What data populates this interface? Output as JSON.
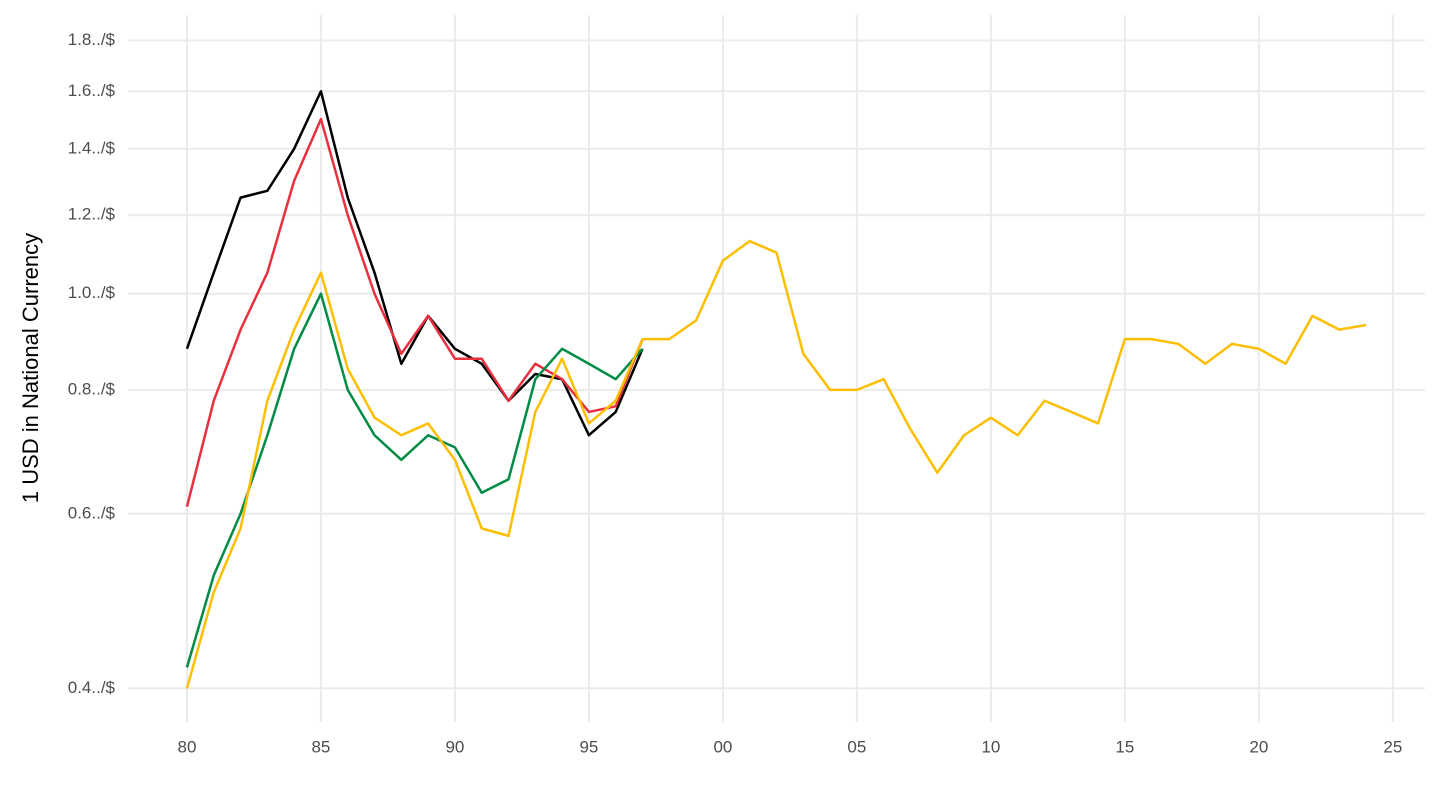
{
  "chart_data": {
    "type": "line",
    "y_label": "1 USD in National Currency",
    "log_scale": true,
    "grid": true,
    "x": [
      1980,
      1981,
      1982,
      1983,
      1984,
      1985,
      1986,
      1987,
      1988,
      1989,
      1990,
      1991,
      1992,
      1993,
      1994,
      1995,
      1996,
      1997,
      1998,
      1999,
      2000,
      2001,
      2002,
      2003,
      2004,
      2005,
      2006,
      2007,
      2008,
      2009,
      2010,
      2011,
      2012,
      2013,
      2014,
      2015,
      2016,
      2017,
      2018,
      2019,
      2020,
      2021,
      2022,
      2023,
      2024
    ],
    "xlim": [
      1977.8,
      2026.2
    ],
    "xticks": [
      {
        "value": 1980,
        "label": "80"
      },
      {
        "value": 1985,
        "label": "85"
      },
      {
        "value": 1990,
        "label": "90"
      },
      {
        "value": 1995,
        "label": "95"
      },
      {
        "value": 2000,
        "label": "00"
      },
      {
        "value": 2005,
        "label": "05"
      },
      {
        "value": 2010,
        "label": "10"
      },
      {
        "value": 2015,
        "label": "15"
      },
      {
        "value": 2020,
        "label": "20"
      },
      {
        "value": 2025,
        "label": "25"
      }
    ],
    "ylim": [
      0.37,
      1.91
    ],
    "yticks": [
      {
        "value": 0.4,
        "label": "0.4../$"
      },
      {
        "value": 0.6,
        "label": "0.6../$"
      },
      {
        "value": 0.8,
        "label": "0.8../$"
      },
      {
        "value": 1.0,
        "label": "1.0../$"
      },
      {
        "value": 1.2,
        "label": "1.2../$"
      },
      {
        "value": 1.4,
        "label": "1.4../$"
      },
      {
        "value": 1.6,
        "label": "1.6../$"
      },
      {
        "value": 1.8,
        "label": "1.8../$"
      }
    ],
    "series": [
      {
        "color": "#000000",
        "values": [
          0.88,
          1.05,
          1.25,
          1.27,
          1.4,
          1.6,
          1.25,
          1.05,
          0.85,
          0.95,
          0.88,
          0.85,
          0.78,
          0.83,
          0.82,
          0.72,
          0.76,
          0.88,
          null,
          null,
          null,
          null,
          null,
          null,
          null,
          null,
          null,
          null,
          null,
          null,
          null,
          null,
          null,
          null,
          null,
          null,
          null,
          null,
          null,
          null,
          null,
          null,
          null,
          null,
          null
        ]
      },
      {
        "color": "#e8303f",
        "values": [
          0.61,
          0.78,
          0.92,
          1.05,
          1.3,
          1.5,
          1.2,
          1.0,
          0.87,
          0.95,
          0.86,
          0.86,
          0.78,
          0.85,
          0.82,
          0.76,
          0.77,
          0.9,
          null,
          null,
          null,
          null,
          null,
          null,
          null,
          null,
          null,
          null,
          null,
          null,
          null,
          null,
          null,
          null,
          null,
          null,
          null,
          null,
          null,
          null,
          null,
          null,
          null,
          null,
          null
        ]
      },
      {
        "color": "#008c45",
        "values": [
          0.42,
          0.52,
          0.6,
          0.72,
          0.88,
          1.0,
          0.8,
          0.72,
          0.68,
          0.72,
          0.7,
          0.63,
          0.65,
          0.82,
          0.88,
          0.85,
          0.82,
          0.88,
          null,
          null,
          null,
          null,
          null,
          null,
          null,
          null,
          null,
          null,
          null,
          null,
          null,
          null,
          null,
          null,
          null,
          null,
          null,
          null,
          null,
          null,
          null,
          null,
          null,
          null,
          null
        ]
      },
      {
        "color": "#fcbf00",
        "values": [
          0.4,
          0.5,
          0.58,
          0.78,
          0.92,
          1.05,
          0.84,
          0.75,
          0.72,
          0.74,
          0.68,
          0.58,
          0.57,
          0.76,
          0.86,
          0.74,
          0.78,
          0.9,
          0.9,
          0.94,
          1.08,
          1.13,
          1.1,
          0.87,
          0.8,
          0.8,
          0.82,
          0.73,
          0.66,
          0.72,
          0.75,
          0.72,
          0.78,
          0.76,
          0.74,
          0.9,
          0.9,
          0.89,
          0.85,
          0.89,
          0.88,
          0.85,
          0.95,
          0.92,
          0.93
        ]
      }
    ]
  }
}
